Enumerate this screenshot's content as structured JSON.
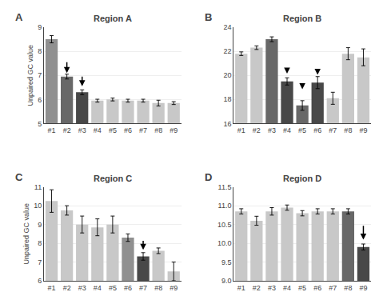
{
  "chart_data": [
    {
      "type": "bar",
      "title": "Region A",
      "annotations": [
        {
          "text": "A"
        }
      ],
      "ylabel": "Unpaired GC value",
      "categories": [
        "#1",
        "#2",
        "#3",
        "#4",
        "#5",
        "#6",
        "#7",
        "#8",
        "#9"
      ],
      "values": [
        8.5,
        6.95,
        6.3,
        5.95,
        6.0,
        5.95,
        5.95,
        5.85,
        5.85
      ],
      "errors": [
        0.15,
        0.1,
        0.1,
        0.06,
        0.06,
        0.06,
        0.06,
        0.12,
        0.06
      ],
      "colors": [
        "#909090",
        "#686868",
        "#484848",
        "#c8c8c8",
        "#c8c8c8",
        "#c8c8c8",
        "#c8c8c8",
        "#c8c8c8",
        "#c8c8c8"
      ],
      "arrows": [
        {
          "x": "#2",
          "from": 7.6,
          "to": 7.1
        },
        {
          "x": "#3",
          "from": 7.0,
          "to": 6.55
        }
      ],
      "ylim": [
        5,
        9
      ],
      "yticks": [
        5,
        6,
        7,
        8,
        9
      ],
      "grid": true
    },
    {
      "type": "bar",
      "title": "Region B",
      "annotations": [
        {
          "text": "B"
        }
      ],
      "categories": [
        "#1",
        "#2",
        "#3",
        "#4",
        "#5",
        "#6",
        "#7",
        "#8",
        "#9"
      ],
      "values": [
        21.8,
        22.3,
        23.0,
        19.5,
        17.5,
        19.4,
        18.1,
        21.8,
        21.5
      ],
      "errors": [
        0.15,
        0.15,
        0.2,
        0.3,
        0.4,
        0.5,
        0.5,
        0.5,
        0.7
      ],
      "colors": [
        "#c8c8c8",
        "#c8c8c8",
        "#686868",
        "#484848",
        "#686868",
        "#484848",
        "#c8c8c8",
        "#c8c8c8",
        "#c8c8c8"
      ],
      "arrows": [
        {
          "x": "#4",
          "from": 20.7,
          "to": 20.15
        },
        {
          "x": "#5",
          "from": 19.4,
          "to": 18.85
        },
        {
          "x": "#6",
          "from": 20.6,
          "to": 20.05
        }
      ],
      "ylim": [
        16,
        24
      ],
      "yticks": [
        16,
        18,
        20,
        22,
        24
      ],
      "grid": true
    },
    {
      "type": "bar",
      "title": "Region C",
      "annotations": [
        {
          "text": "C"
        }
      ],
      "ylabel": "Unpaired GC value",
      "categories": [
        "#1",
        "#2",
        "#3",
        "#4",
        "#5",
        "#6",
        "#7",
        "#8",
        "#9"
      ],
      "values": [
        10.25,
        9.75,
        9.0,
        8.85,
        9.0,
        8.3,
        7.3,
        7.6,
        6.5
      ],
      "errors": [
        0.6,
        0.25,
        0.45,
        0.45,
        0.45,
        0.2,
        0.2,
        0.15,
        0.5
      ],
      "colors": [
        "#c8c8c8",
        "#c8c8c8",
        "#c8c8c8",
        "#c8c8c8",
        "#c8c8c8",
        "#909090",
        "#484848",
        "#c8c8c8",
        "#c8c8c8"
      ],
      "arrows": [
        {
          "x": "#7",
          "from": 8.2,
          "to": 7.65
        }
      ],
      "ylim": [
        6,
        11
      ],
      "yticks": [
        6,
        7,
        8,
        9,
        10,
        11
      ],
      "grid": true
    },
    {
      "type": "bar",
      "title": "Region D",
      "annotations": [
        {
          "text": "D"
        }
      ],
      "categories": [
        "#1",
        "#2",
        "#3",
        "#4",
        "#5",
        "#6",
        "#7",
        "#8",
        "#9"
      ],
      "values": [
        10.85,
        10.6,
        10.85,
        10.95,
        10.8,
        10.85,
        10.85,
        10.85,
        9.9
      ],
      "errors": [
        0.07,
        0.12,
        0.1,
        0.07,
        0.07,
        0.07,
        0.07,
        0.07,
        0.08
      ],
      "colors": [
        "#c8c8c8",
        "#c8c8c8",
        "#c8c8c8",
        "#c8c8c8",
        "#c8c8c8",
        "#c8c8c8",
        "#c8c8c8",
        "#686868",
        "#484848"
      ],
      "arrows": [
        {
          "x": "#9",
          "from": 10.5,
          "to": 10.1
        }
      ],
      "ylim": [
        9,
        11.5
      ],
      "yticks": [
        {
          "value": 9,
          "label": "9.0"
        },
        {
          "value": 9.5,
          "label": "9.5"
        },
        {
          "value": 10,
          "label": "10.0"
        },
        {
          "value": 10.5,
          "label": "10.5"
        },
        {
          "value": 11,
          "label": "11.0"
        },
        {
          "value": 11.5,
          "label": "11.5"
        }
      ],
      "grid": true
    }
  ]
}
